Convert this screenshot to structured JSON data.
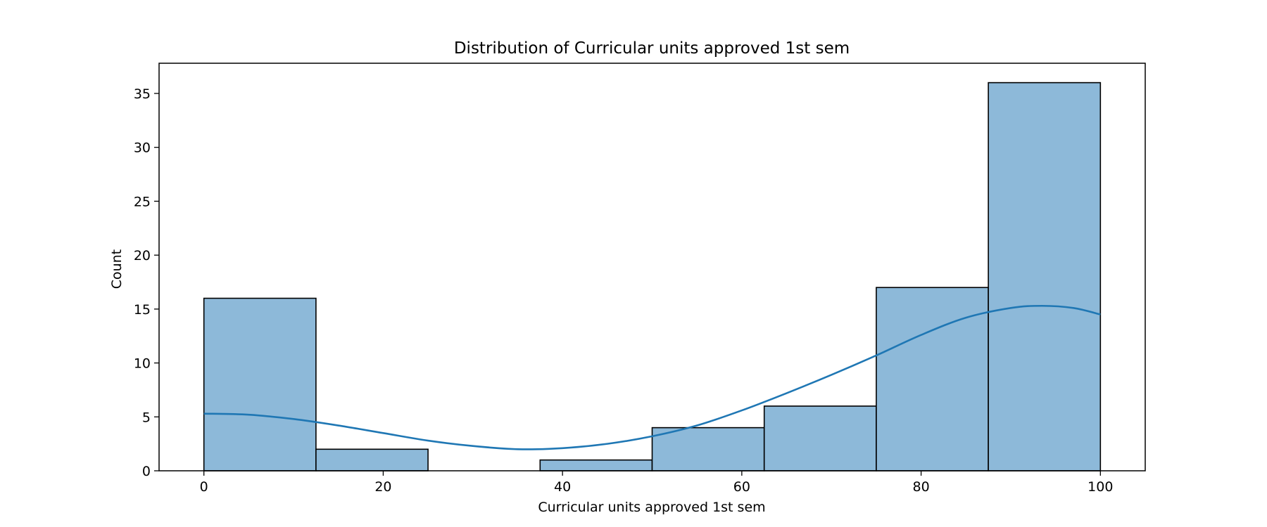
{
  "chart_data": {
    "type": "bar",
    "subtype": "histogram",
    "title": "Distribution of Curricular units approved 1st sem",
    "xlabel": "Curricular units approved 1st sem",
    "ylabel": "Count",
    "bins": [
      {
        "x0": 0,
        "x1": 12.5,
        "count": 16
      },
      {
        "x0": 12.5,
        "x1": 25,
        "count": 2
      },
      {
        "x0": 25,
        "x1": 37.5,
        "count": 0
      },
      {
        "x0": 37.5,
        "x1": 50,
        "count": 1
      },
      {
        "x0": 50,
        "x1": 62.5,
        "count": 4
      },
      {
        "x0": 62.5,
        "x1": 75,
        "count": 6
      },
      {
        "x0": 75,
        "x1": 87.5,
        "count": 17
      },
      {
        "x0": 87.5,
        "x1": 100,
        "count": 36
      }
    ],
    "kde": {
      "x": [
        0,
        5,
        10,
        15,
        20,
        25,
        30,
        35,
        40,
        45,
        50,
        55,
        60,
        65,
        70,
        75,
        80,
        85,
        90,
        93.5,
        97,
        100
      ],
      "y": [
        5.3,
        5.2,
        4.8,
        4.2,
        3.5,
        2.8,
        2.3,
        2.0,
        2.1,
        2.5,
        3.2,
        4.2,
        5.6,
        7.2,
        8.9,
        10.7,
        12.6,
        14.2,
        15.1,
        15.3,
        15.1,
        14.5
      ]
    },
    "xlim": [
      -5,
      105
    ],
    "ylim": [
      0,
      37.8
    ],
    "xticks": [
      0,
      20,
      40,
      60,
      80,
      100
    ],
    "yticks": [
      0,
      5,
      10,
      15,
      20,
      25,
      30,
      35
    ],
    "grid": false,
    "colors": {
      "bar_fill": "#8db9d9",
      "bar_edge": "#000000",
      "kde_line": "#1f77b4"
    }
  }
}
